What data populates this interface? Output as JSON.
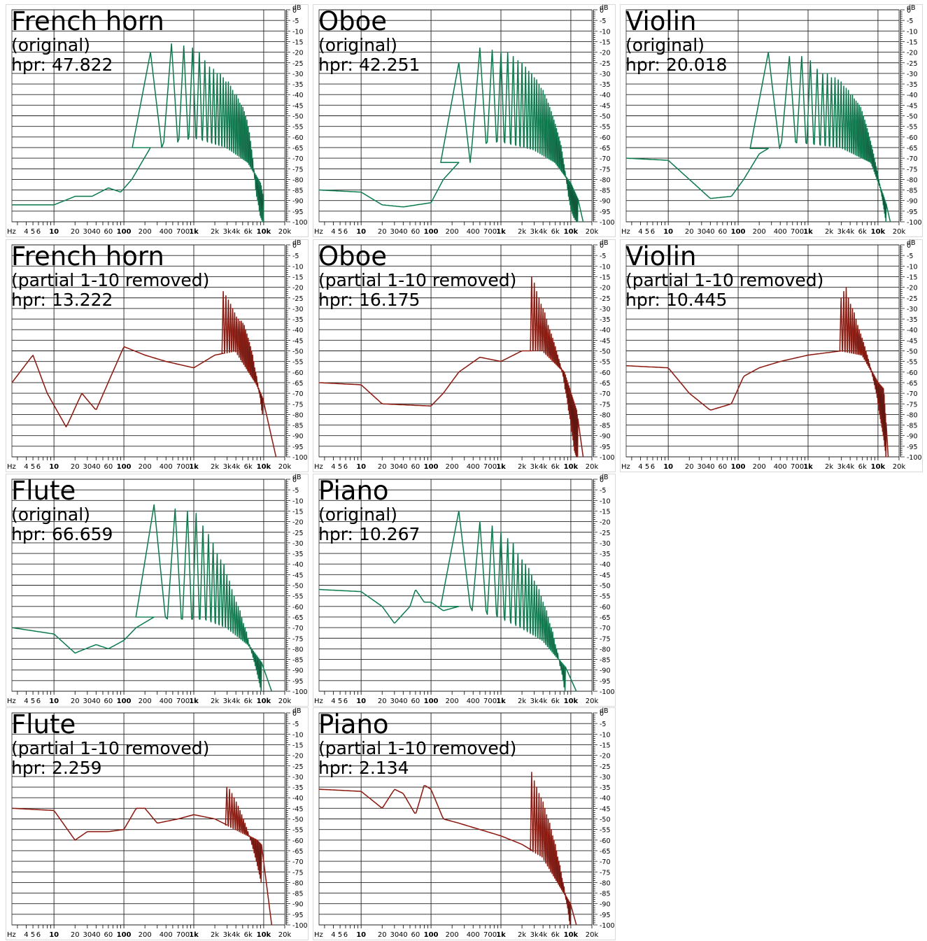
{
  "axis": {
    "x_unit": "Hz",
    "x_tick_labels": [
      "4",
      "5",
      "6",
      "10",
      "20",
      "30",
      "40",
      "60",
      "100",
      "200",
      "400",
      "700",
      "1k",
      "2k",
      "3k",
      "4k",
      "6k",
      "10k",
      "20k"
    ],
    "x_tick_values": [
      4,
      5,
      6,
      10,
      20,
      30,
      40,
      60,
      100,
      200,
      400,
      700,
      1000,
      2000,
      3000,
      4000,
      6000,
      10000,
      20000
    ],
    "y_unit": "dB",
    "y_tick_labels": [
      "0",
      "-5",
      "-10",
      "-15",
      "-20",
      "-25",
      "-30",
      "-35",
      "-40",
      "-45",
      "-50",
      "-55",
      "-60",
      "-65",
      "-70",
      "-75",
      "-80",
      "-85",
      "-90",
      "-95",
      "-100"
    ],
    "x_range_hz": [
      2.5,
      20000
    ],
    "y_range_db": [
      -100,
      0
    ],
    "scale_x": "log",
    "grid": true
  },
  "hpr_label": "hpr:",
  "chart_data": [
    {
      "type": "line",
      "name": "French horn",
      "subtitle": "(original)",
      "hpr": "47.822",
      "color": "#1e9e6a",
      "fundamental_hz": 240,
      "partials": 40,
      "noise": [
        [
          2.5,
          -92
        ],
        [
          10,
          -92
        ],
        [
          20,
          -88
        ],
        [
          35,
          -88
        ],
        [
          60,
          -84
        ],
        [
          90,
          -86
        ],
        [
          130,
          -80
        ],
        [
          180,
          -72
        ],
        [
          240,
          -65
        ],
        [
          400,
          -63
        ],
        [
          1000,
          -60
        ],
        [
          3000,
          -65
        ],
        [
          6000,
          -72
        ],
        [
          9000,
          -82
        ],
        [
          10000,
          -90
        ]
      ],
      "peaks": [
        -20,
        -16,
        -17,
        -18,
        -20,
        -24,
        -27,
        -28,
        -30,
        -30,
        -32,
        -34,
        -34,
        -36,
        -38,
        -40,
        -40,
        -42,
        -44,
        -45,
        -46,
        -48,
        -50,
        -52,
        -55,
        -58,
        -62,
        -66,
        -70,
        -75,
        -80,
        -85,
        -88,
        -90,
        -92,
        -95,
        -97,
        -98,
        -99,
        -100
      ]
    },
    {
      "type": "line",
      "name": "Oboe",
      "subtitle": "(original)",
      "hpr": "42.251",
      "color": "#1e9e6a",
      "fundamental_hz": 250,
      "partials": 50,
      "noise": [
        [
          2.5,
          -85
        ],
        [
          10,
          -86
        ],
        [
          20,
          -92
        ],
        [
          40,
          -93
        ],
        [
          100,
          -91
        ],
        [
          150,
          -80
        ],
        [
          250,
          -72
        ],
        [
          500,
          -63
        ],
        [
          1000,
          -62
        ],
        [
          3000,
          -66
        ],
        [
          6000,
          -72
        ],
        [
          10000,
          -82
        ],
        [
          15000,
          -95
        ]
      ],
      "peaks": [
        -25,
        -18,
        -19,
        -20,
        -20,
        -22,
        -24,
        -25,
        -27,
        -29,
        -30,
        -32,
        -33,
        -35,
        -37,
        -38,
        -40,
        -42,
        -44,
        -46,
        -48,
        -50,
        -52,
        -54,
        -56,
        -58,
        -60,
        -62,
        -64,
        -67,
        -70,
        -73,
        -76,
        -79,
        -82,
        -85,
        -88,
        -90,
        -92,
        -94,
        -95,
        -96,
        -97,
        -98,
        -98,
        -99,
        -99,
        -100,
        -100,
        -100
      ]
    },
    {
      "type": "line",
      "name": "Violin",
      "subtitle": "(original)",
      "hpr": "20.018",
      "color": "#1e9e6a",
      "fundamental_hz": 270,
      "partials": 48,
      "noise": [
        [
          2.5,
          -70
        ],
        [
          10,
          -71
        ],
        [
          20,
          -80
        ],
        [
          40,
          -89
        ],
        [
          80,
          -88
        ],
        [
          120,
          -80
        ],
        [
          200,
          -68
        ],
        [
          400,
          -62
        ],
        [
          1000,
          -63
        ],
        [
          3000,
          -65
        ],
        [
          8000,
          -72
        ],
        [
          12000,
          -88
        ],
        [
          15000,
          -98
        ]
      ],
      "peaks": [
        -20,
        -22,
        -22,
        -24,
        -28,
        -30,
        -30,
        -32,
        -32,
        -33,
        -34,
        -36,
        -37,
        -38,
        -40,
        -40,
        -42,
        -43,
        -44,
        -45,
        -46,
        -48,
        -50,
        -52,
        -54,
        -56,
        -58,
        -60,
        -62,
        -64,
        -66,
        -68,
        -70,
        -72,
        -74,
        -76,
        -78,
        -80,
        -82,
        -84,
        -86,
        -88,
        -90,
        -92,
        -94,
        -96,
        -98,
        -100
      ]
    },
    {
      "type": "line",
      "name": "French horn",
      "subtitle": "(partial 1-10 removed)",
      "hpr": "13.222",
      "color": "#b02a1e",
      "fundamental_hz": 240,
      "partials": 40,
      "first_partial": 11,
      "noise": [
        [
          2.5,
          -65
        ],
        [
          5,
          -52
        ],
        [
          8,
          -70
        ],
        [
          15,
          -86
        ],
        [
          25,
          -70
        ],
        [
          40,
          -78
        ],
        [
          100,
          -48
        ],
        [
          200,
          -52
        ],
        [
          400,
          -55
        ],
        [
          1000,
          -58
        ],
        [
          2000,
          -52
        ],
        [
          4000,
          -50
        ],
        [
          8000,
          -66
        ],
        [
          12000,
          -80
        ],
        [
          15000,
          -100
        ]
      ],
      "peaks": [
        -22,
        -24,
        -26,
        -28,
        -30,
        -32,
        -34,
        -35,
        -36,
        -36,
        -37,
        -38,
        -40,
        -42,
        -44,
        -46,
        -48,
        -50,
        -52,
        -55,
        -58,
        -60,
        -62,
        -65,
        -68,
        -70,
        -72,
        -75,
        -78,
        -80
      ]
    },
    {
      "type": "line",
      "name": "Oboe",
      "subtitle": "(partial 1-10 removed)",
      "hpr": "16.175",
      "color": "#b02a1e",
      "fundamental_hz": 250,
      "partials": 50,
      "first_partial": 11,
      "noise": [
        [
          2.5,
          -65
        ],
        [
          10,
          -66
        ],
        [
          20,
          -75
        ],
        [
          100,
          -76
        ],
        [
          150,
          -70
        ],
        [
          250,
          -60
        ],
        [
          500,
          -53
        ],
        [
          1000,
          -55
        ],
        [
          2000,
          -50
        ],
        [
          4000,
          -50
        ],
        [
          8000,
          -60
        ],
        [
          12000,
          -78
        ],
        [
          15000,
          -100
        ]
      ],
      "peaks": [
        -15,
        -18,
        -22,
        -25,
        -28,
        -30,
        -32,
        -35,
        -38,
        -40,
        -42,
        -44,
        -46,
        -48,
        -50,
        -52,
        -54,
        -56,
        -58,
        -60,
        -62,
        -65,
        -68,
        -70,
        -72,
        -75,
        -78,
        -80,
        -82,
        -85,
        -88,
        -90,
        -92,
        -95,
        -97,
        -98,
        -99,
        -100,
        -100,
        -100
      ]
    },
    {
      "type": "line",
      "name": "Violin",
      "subtitle": "(partial 1-10 removed)",
      "hpr": "10.445",
      "color": "#b02a1e",
      "fundamental_hz": 270,
      "partials": 48,
      "first_partial": 11,
      "noise": [
        [
          2.5,
          -57
        ],
        [
          10,
          -58
        ],
        [
          20,
          -70
        ],
        [
          40,
          -78
        ],
        [
          80,
          -75
        ],
        [
          120,
          -62
        ],
        [
          200,
          -58
        ],
        [
          400,
          -55
        ],
        [
          1000,
          -52
        ],
        [
          3000,
          -50
        ],
        [
          6000,
          -52
        ],
        [
          10000,
          -65
        ],
        [
          12000,
          -68
        ],
        [
          14000,
          -100
        ]
      ],
      "peaks": [
        -25,
        -22,
        -20,
        -25,
        -28,
        -30,
        -32,
        -35,
        -38,
        -40,
        -42,
        -44,
        -46,
        -48,
        -50,
        -52,
        -54,
        -56,
        -58,
        -60,
        -62,
        -64,
        -66,
        -68,
        -70,
        -72,
        -75,
        -78,
        -80,
        -82,
        -84,
        -86,
        -88,
        -90,
        -92,
        -95,
        -97,
        -100
      ]
    },
    {
      "type": "line",
      "name": "Flute",
      "subtitle": "(original)",
      "hpr": "66.659",
      "color": "#1e9e6a",
      "fundamental_hz": 270,
      "partials": 45,
      "noise": [
        [
          2.5,
          -70
        ],
        [
          10,
          -73
        ],
        [
          20,
          -82
        ],
        [
          40,
          -78
        ],
        [
          60,
          -80
        ],
        [
          100,
          -76
        ],
        [
          150,
          -70
        ],
        [
          270,
          -65
        ],
        [
          600,
          -66
        ],
        [
          1500,
          -66
        ],
        [
          3000,
          -70
        ],
        [
          6000,
          -78
        ],
        [
          10000,
          -88
        ],
        [
          13000,
          -100
        ]
      ],
      "peaks": [
        -12,
        -14,
        -15,
        -16,
        -22,
        -26,
        -30,
        -35,
        -38,
        -40,
        -45,
        -48,
        -52,
        -55,
        -58,
        -60,
        -62,
        -65,
        -68,
        -70,
        -72,
        -75,
        -78,
        -80,
        -82,
        -84,
        -86,
        -88,
        -90,
        -92,
        -94,
        -96,
        -98,
        -100
      ]
    },
    {
      "type": "line",
      "name": "Piano",
      "subtitle": "(original)",
      "hpr": "10.267",
      "color": "#1e9e6a",
      "fundamental_hz": 250,
      "partials": 50,
      "noise": [
        [
          2.5,
          -52
        ],
        [
          10,
          -53
        ],
        [
          20,
          -60
        ],
        [
          30,
          -68
        ],
        [
          50,
          -60
        ],
        [
          60,
          -52
        ],
        [
          80,
          -58
        ],
        [
          100,
          -58
        ],
        [
          150,
          -62
        ],
        [
          250,
          -60
        ],
        [
          500,
          -62
        ],
        [
          1000,
          -65
        ],
        [
          2000,
          -70
        ],
        [
          4000,
          -76
        ],
        [
          8000,
          -88
        ],
        [
          12000,
          -95
        ]
      ],
      "peaks": [
        -15,
        -20,
        -22,
        -25,
        -28,
        -30,
        -35,
        -38,
        -40,
        -42,
        -45,
        -48,
        -50,
        -52,
        -55,
        -58,
        -60,
        -62,
        -65,
        -68,
        -70,
        -72,
        -75,
        -78,
        -80,
        -82,
        -85,
        -88,
        -90,
        -92,
        -95,
        -98,
        -100
      ]
    },
    {
      "type": "line",
      "name": "Flute",
      "subtitle": "(partial 1-10 removed)",
      "hpr": "2.259",
      "color": "#b02a1e",
      "fundamental_hz": 270,
      "partials": 45,
      "first_partial": 11,
      "noise": [
        [
          2.5,
          -45
        ],
        [
          10,
          -46
        ],
        [
          20,
          -60
        ],
        [
          30,
          -56
        ],
        [
          60,
          -56
        ],
        [
          100,
          -55
        ],
        [
          150,
          -45
        ],
        [
          200,
          -45
        ],
        [
          300,
          -52
        ],
        [
          600,
          -50
        ],
        [
          1000,
          -48
        ],
        [
          2000,
          -50
        ],
        [
          4000,
          -55
        ],
        [
          8000,
          -60
        ],
        [
          11000,
          -65
        ],
        [
          13000,
          -100
        ]
      ],
      "peaks": [
        -35,
        -36,
        -38,
        -40,
        -42,
        -44,
        -46,
        -48,
        -50,
        -52,
        -54,
        -56,
        -58,
        -60,
        -62,
        -64,
        -66,
        -68,
        -70,
        -72,
        -74,
        -76,
        -78,
        -80
      ]
    },
    {
      "type": "line",
      "name": "Piano",
      "subtitle": "(partial 1-10 removed)",
      "hpr": "2.134",
      "color": "#b02a1e",
      "fundamental_hz": 250,
      "partials": 50,
      "first_partial": 11,
      "noise": [
        [
          2.5,
          -36
        ],
        [
          10,
          -37
        ],
        [
          20,
          -45
        ],
        [
          30,
          -36
        ],
        [
          40,
          -38
        ],
        [
          60,
          -48
        ],
        [
          80,
          -34
        ],
        [
          100,
          -36
        ],
        [
          150,
          -50
        ],
        [
          250,
          -52
        ],
        [
          500,
          -55
        ],
        [
          1000,
          -58
        ],
        [
          2000,
          -62
        ],
        [
          4000,
          -68
        ],
        [
          8000,
          -85
        ],
        [
          12000,
          -95
        ]
      ],
      "peaks": [
        -28,
        -32,
        -35,
        -38,
        -40,
        -42,
        -45,
        -48,
        -50,
        -52,
        -55,
        -58,
        -60,
        -62,
        -65,
        -68,
        -70,
        -72,
        -75,
        -78,
        -80,
        -82,
        -85,
        -88,
        -90,
        -92,
        -95,
        -98,
        -100
      ]
    }
  ]
}
